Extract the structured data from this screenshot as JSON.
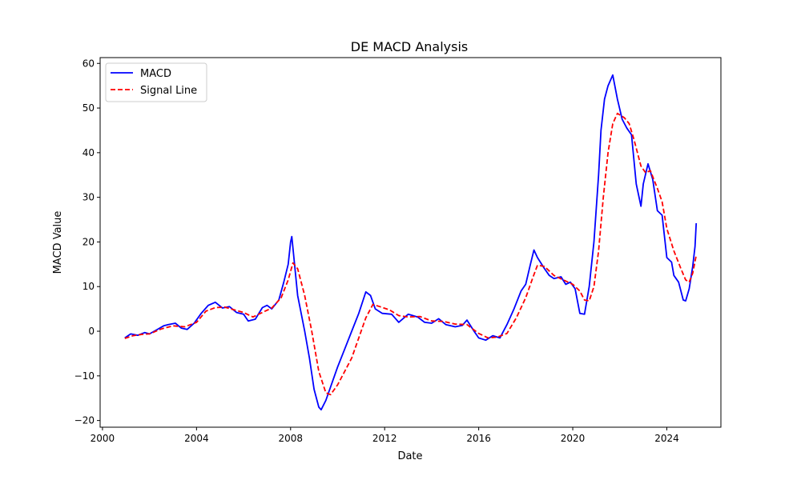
{
  "chart_data": {
    "type": "line",
    "title": "DE MACD Analysis",
    "xlabel": "Date",
    "ylabel": "MACD Value",
    "xlim": [
      1999.9,
      2026.3
    ],
    "ylim": [
      -21.5,
      61.3
    ],
    "x_ticks": [
      2000,
      2004,
      2008,
      2012,
      2016,
      2020,
      2024
    ],
    "x_tick_labels": [
      "2000",
      "2004",
      "2008",
      "2012",
      "2016",
      "2020",
      "2024"
    ],
    "y_ticks": [
      -20,
      -10,
      0,
      10,
      20,
      30,
      40,
      50,
      60
    ],
    "y_tick_labels": [
      "−20",
      "−10",
      "0",
      "10",
      "20",
      "30",
      "40",
      "50",
      "60"
    ],
    "grid": false,
    "legend_position": "top-left",
    "series": [
      {
        "name": "MACD",
        "color": "#0000ff",
        "style": "solid",
        "points": [
          [
            2000.95,
            -1.5
          ],
          [
            2001.2,
            -0.6
          ],
          [
            2001.5,
            -0.9
          ],
          [
            2001.8,
            -0.3
          ],
          [
            2002.0,
            -0.6
          ],
          [
            2002.3,
            0.3
          ],
          [
            2002.6,
            1.2
          ],
          [
            2002.8,
            1.5
          ],
          [
            2003.1,
            1.8
          ],
          [
            2003.35,
            0.7
          ],
          [
            2003.6,
            0.4
          ],
          [
            2003.9,
            1.8
          ],
          [
            2004.2,
            4.0
          ],
          [
            2004.5,
            5.8
          ],
          [
            2004.8,
            6.5
          ],
          [
            2005.1,
            5.2
          ],
          [
            2005.4,
            5.5
          ],
          [
            2005.7,
            4.2
          ],
          [
            2006.0,
            3.8
          ],
          [
            2006.2,
            2.3
          ],
          [
            2006.5,
            2.7
          ],
          [
            2006.8,
            5.3
          ],
          [
            2007.0,
            5.8
          ],
          [
            2007.2,
            5.0
          ],
          [
            2007.5,
            7.0
          ],
          [
            2007.7,
            10.8
          ],
          [
            2007.9,
            15.0
          ],
          [
            2008.0,
            20.0
          ],
          [
            2008.05,
            21.2
          ],
          [
            2008.3,
            8.0
          ],
          [
            2008.6,
            0.0
          ],
          [
            2008.8,
            -6.0
          ],
          [
            2009.0,
            -13.0
          ],
          [
            2009.2,
            -17.0
          ],
          [
            2009.3,
            -17.6
          ],
          [
            2009.5,
            -15.5
          ],
          [
            2009.8,
            -11.0
          ],
          [
            2010.0,
            -8.0
          ],
          [
            2010.3,
            -4.0
          ],
          [
            2010.6,
            0.0
          ],
          [
            2010.9,
            4.0
          ],
          [
            2011.2,
            8.8
          ],
          [
            2011.4,
            8.0
          ],
          [
            2011.6,
            5.0
          ],
          [
            2011.9,
            4.0
          ],
          [
            2012.3,
            3.8
          ],
          [
            2012.6,
            2.0
          ],
          [
            2013.0,
            3.8
          ],
          [
            2013.4,
            3.2
          ],
          [
            2013.7,
            2.0
          ],
          [
            2014.0,
            1.8
          ],
          [
            2014.3,
            2.8
          ],
          [
            2014.6,
            1.5
          ],
          [
            2015.0,
            1.0
          ],
          [
            2015.3,
            1.3
          ],
          [
            2015.5,
            2.5
          ],
          [
            2015.8,
            0.0
          ],
          [
            2016.0,
            -1.5
          ],
          [
            2016.3,
            -2.0
          ],
          [
            2016.6,
            -1.0
          ],
          [
            2016.9,
            -1.5
          ],
          [
            2017.2,
            1.5
          ],
          [
            2017.5,
            5.0
          ],
          [
            2017.8,
            9.0
          ],
          [
            2018.0,
            10.5
          ],
          [
            2018.2,
            15.0
          ],
          [
            2018.35,
            18.2
          ],
          [
            2018.5,
            16.5
          ],
          [
            2018.8,
            14.0
          ],
          [
            2019.0,
            12.5
          ],
          [
            2019.2,
            11.8
          ],
          [
            2019.5,
            12.2
          ],
          [
            2019.7,
            10.5
          ],
          [
            2019.9,
            11.0
          ],
          [
            2020.1,
            9.5
          ],
          [
            2020.3,
            4.0
          ],
          [
            2020.5,
            3.8
          ],
          [
            2020.7,
            10.0
          ],
          [
            2020.9,
            20.0
          ],
          [
            2021.1,
            35.0
          ],
          [
            2021.2,
            45.0
          ],
          [
            2021.35,
            52.0
          ],
          [
            2021.5,
            55.0
          ],
          [
            2021.7,
            57.4
          ],
          [
            2021.9,
            52.0
          ],
          [
            2022.1,
            47.5
          ],
          [
            2022.3,
            45.5
          ],
          [
            2022.5,
            44.0
          ],
          [
            2022.7,
            33.0
          ],
          [
            2022.9,
            28.0
          ],
          [
            2023.0,
            33.0
          ],
          [
            2023.2,
            37.5
          ],
          [
            2023.4,
            34.0
          ],
          [
            2023.6,
            27.0
          ],
          [
            2023.8,
            26.0
          ],
          [
            2024.0,
            16.5
          ],
          [
            2024.2,
            15.5
          ],
          [
            2024.3,
            12.5
          ],
          [
            2024.5,
            11.0
          ],
          [
            2024.7,
            7.0
          ],
          [
            2024.8,
            6.8
          ],
          [
            2024.95,
            9.5
          ],
          [
            2025.1,
            14.5
          ],
          [
            2025.2,
            19.0
          ],
          [
            2025.25,
            24.2
          ]
        ]
      },
      {
        "name": "Signal Line",
        "color": "#ff0000",
        "style": "dashed",
        "points": [
          [
            2000.95,
            -1.6
          ],
          [
            2001.3,
            -1.0
          ],
          [
            2001.7,
            -0.7
          ],
          [
            2002.0,
            -0.6
          ],
          [
            2002.5,
            0.5
          ],
          [
            2003.0,
            1.2
          ],
          [
            2003.5,
            1.0
          ],
          [
            2004.0,
            2.0
          ],
          [
            2004.4,
            4.5
          ],
          [
            2004.8,
            5.3
          ],
          [
            2005.2,
            5.4
          ],
          [
            2005.6,
            4.8
          ],
          [
            2006.0,
            4.2
          ],
          [
            2006.4,
            3.2
          ],
          [
            2006.8,
            4.2
          ],
          [
            2007.2,
            5.2
          ],
          [
            2007.6,
            7.5
          ],
          [
            2007.9,
            11.5
          ],
          [
            2008.1,
            15.3
          ],
          [
            2008.3,
            14.0
          ],
          [
            2008.6,
            8.0
          ],
          [
            2008.9,
            0.0
          ],
          [
            2009.2,
            -9.0
          ],
          [
            2009.5,
            -13.8
          ],
          [
            2009.7,
            -14.2
          ],
          [
            2010.0,
            -12.0
          ],
          [
            2010.3,
            -9.0
          ],
          [
            2010.6,
            -6.0
          ],
          [
            2010.9,
            -1.5
          ],
          [
            2011.2,
            3.0
          ],
          [
            2011.5,
            6.0
          ],
          [
            2011.8,
            5.5
          ],
          [
            2012.2,
            4.8
          ],
          [
            2012.6,
            3.5
          ],
          [
            2013.0,
            3.2
          ],
          [
            2013.5,
            3.3
          ],
          [
            2014.0,
            2.3
          ],
          [
            2014.5,
            2.2
          ],
          [
            2015.0,
            1.6
          ],
          [
            2015.5,
            1.5
          ],
          [
            2016.0,
            -0.5
          ],
          [
            2016.4,
            -1.5
          ],
          [
            2016.8,
            -1.3
          ],
          [
            2017.2,
            -0.5
          ],
          [
            2017.6,
            3.0
          ],
          [
            2018.0,
            7.5
          ],
          [
            2018.3,
            12.0
          ],
          [
            2018.5,
            14.8
          ],
          [
            2018.8,
            14.5
          ],
          [
            2019.2,
            12.5
          ],
          [
            2019.6,
            11.5
          ],
          [
            2020.0,
            10.5
          ],
          [
            2020.3,
            9.0
          ],
          [
            2020.5,
            7.0
          ],
          [
            2020.7,
            6.8
          ],
          [
            2020.9,
            10.0
          ],
          [
            2021.1,
            18.0
          ],
          [
            2021.3,
            30.0
          ],
          [
            2021.5,
            40.0
          ],
          [
            2021.7,
            46.5
          ],
          [
            2021.9,
            48.8
          ],
          [
            2022.2,
            47.8
          ],
          [
            2022.4,
            46.5
          ],
          [
            2022.6,
            43.0
          ],
          [
            2022.9,
            37.0
          ],
          [
            2023.1,
            35.5
          ],
          [
            2023.3,
            36.0
          ],
          [
            2023.6,
            32.0
          ],
          [
            2023.8,
            29.0
          ],
          [
            2024.0,
            23.0
          ],
          [
            2024.3,
            18.0
          ],
          [
            2024.6,
            14.0
          ],
          [
            2024.8,
            11.5
          ],
          [
            2024.95,
            11.0
          ],
          [
            2025.1,
            13.0
          ],
          [
            2025.25,
            17.0
          ]
        ]
      }
    ]
  }
}
